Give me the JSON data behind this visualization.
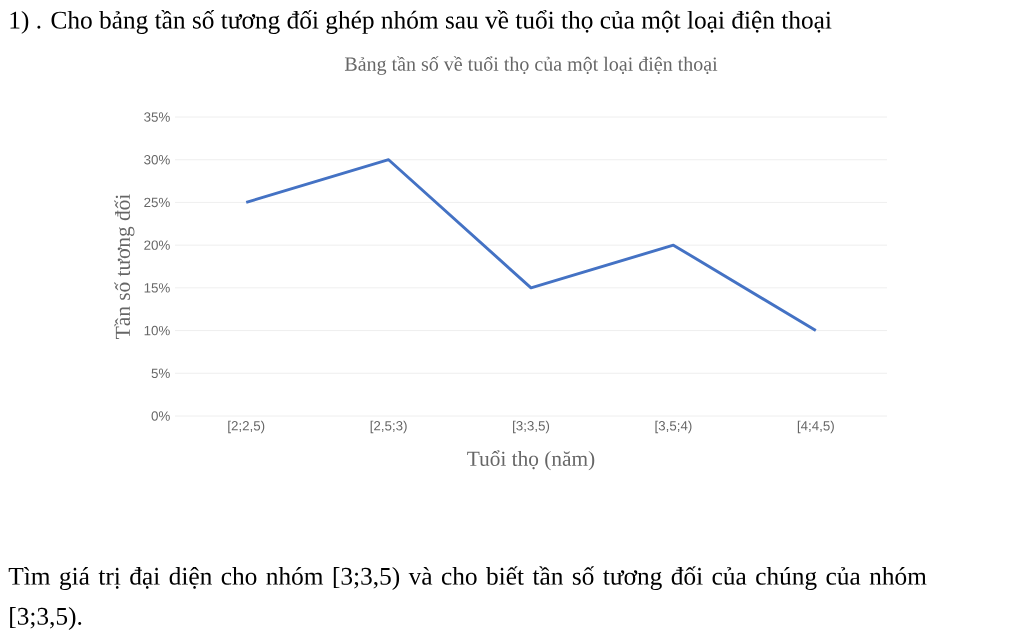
{
  "chart_data": {
    "type": "line",
    "title": "Bảng tần số về tuổi thọ của một loại điện thoại",
    "xlabel": "Tuổi thọ (năm)",
    "ylabel": "Tần số tương đối",
    "categories": [
      "[2;2,5)",
      "[2,5;3)",
      "[3;3,5)",
      "[3,5;4)",
      "[4;4,5)"
    ],
    "values": [
      25,
      30,
      15,
      20,
      10
    ],
    "color": "#4472c4",
    "ylim": [
      0,
      35
    ],
    "yticks": [
      {
        "value": 0,
        "label": "0%"
      },
      {
        "value": 5,
        "label": "5%"
      },
      {
        "value": 10,
        "label": "10%"
      },
      {
        "value": 15,
        "label": "15%"
      },
      {
        "value": 20,
        "label": "20%"
      },
      {
        "value": 25,
        "label": "25%"
      },
      {
        "value": 30,
        "label": "30%"
      },
      {
        "value": 35,
        "label": "35%"
      }
    ],
    "grid": "y",
    "marker": "none",
    "line_style": "solid",
    "annotations": [
      "1) . Cho bảng tần số tương đối ghép nhóm sau về tuổi thọ của một loại điện thoại",
      "Tìm giá trị đại diện cho nhóm [3;3,5) và cho biết tần số tương đối của chúng của nhóm [3;3,5)."
    ]
  }
}
